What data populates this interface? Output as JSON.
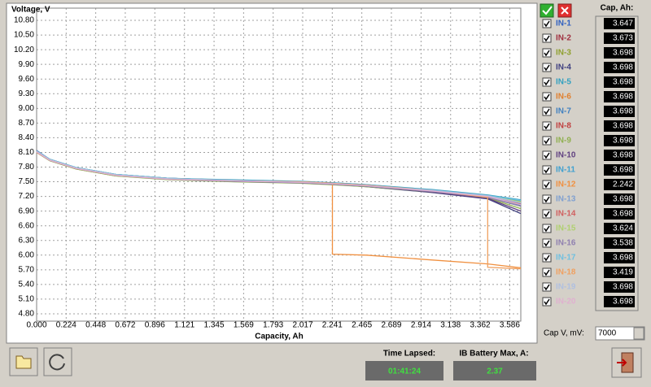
{
  "chart_data": {
    "type": "line",
    "ylabel": "Voltage, V",
    "xlabel": "Capacity, Ah",
    "ylim": [
      4.65,
      11.05
    ],
    "xlim": [
      0,
      3.67
    ],
    "grid": true,
    "yticks": [
      {
        "value": 4.8,
        "label": "4.80"
      },
      {
        "value": 5.1,
        "label": "5.10"
      },
      {
        "value": 5.4,
        "label": "5.40"
      },
      {
        "value": 5.7,
        "label": "5.70"
      },
      {
        "value": 6.0,
        "label": "6.00"
      },
      {
        "value": 6.3,
        "label": "6.30"
      },
      {
        "value": 6.6,
        "label": "6.60"
      },
      {
        "value": 6.9,
        "label": "6.90"
      },
      {
        "value": 7.2,
        "label": "7.20"
      },
      {
        "value": 7.5,
        "label": "7.50"
      },
      {
        "value": 7.8,
        "label": "7.80"
      },
      {
        "value": 8.1,
        "label": "8.10"
      },
      {
        "value": 8.4,
        "label": "8.40"
      },
      {
        "value": 8.7,
        "label": "8.70"
      },
      {
        "value": 9.0,
        "label": "9.00"
      },
      {
        "value": 9.3,
        "label": "9.30"
      },
      {
        "value": 9.6,
        "label": "9.60"
      },
      {
        "value": 9.9,
        "label": "9.90"
      },
      {
        "value": 10.2,
        "label": "10.20"
      },
      {
        "value": 10.5,
        "label": "10.50"
      },
      {
        "value": 10.8,
        "label": "10.80"
      }
    ],
    "xticks": [
      {
        "value": 0,
        "label": "0.000"
      },
      0.224,
      0.448,
      0.672,
      0.896,
      1.121,
      1.345,
      1.569,
      1.793,
      2.017,
      2.241,
      2.465,
      2.689,
      2.914,
      3.138,
      3.362,
      3.586
    ],
    "x": [
      0,
      0.1,
      0.3,
      0.6,
      1.0,
      1.5,
      2.0,
      2.242,
      2.242,
      2.5,
      3.0,
      3.419,
      3.419,
      3.67
    ],
    "series": [
      {
        "name": "IN-1",
        "color": "#3060c0",
        "values": [
          8.14,
          7.96,
          7.79,
          7.65,
          7.57,
          7.53,
          7.5,
          7.47,
          7.47,
          7.43,
          7.33,
          7.22,
          7.22,
          7.12
        ]
      },
      {
        "name": "IN-2",
        "color": "#a03040",
        "values": [
          8.12,
          7.95,
          7.78,
          7.64,
          7.56,
          7.52,
          7.49,
          7.46,
          7.46,
          7.42,
          7.31,
          7.2,
          7.2,
          7.05
        ]
      },
      {
        "name": "IN-3",
        "color": "#90a030",
        "values": [
          8.1,
          7.93,
          7.76,
          7.62,
          7.55,
          7.51,
          7.48,
          7.45,
          7.45,
          7.41,
          7.3,
          7.18,
          7.18,
          7.0
        ]
      },
      {
        "name": "IN-4",
        "color": "#404080",
        "values": [
          8.11,
          7.94,
          7.77,
          7.63,
          7.55,
          7.51,
          7.48,
          7.45,
          7.45,
          7.4,
          7.28,
          7.15,
          7.15,
          6.85
        ]
      },
      {
        "name": "IN-5",
        "color": "#30a0c0",
        "values": [
          8.13,
          7.96,
          7.79,
          7.65,
          7.57,
          7.54,
          7.51,
          7.48,
          7.48,
          7.44,
          7.34,
          7.23,
          7.23,
          7.13
        ]
      },
      {
        "name": "IN-6",
        "color": "#e08030",
        "values": [
          8.12,
          7.95,
          7.78,
          7.64,
          7.56,
          7.52,
          7.5,
          7.47,
          7.47,
          7.43,
          7.32,
          7.21,
          7.21,
          7.08
        ]
      },
      {
        "name": "IN-7",
        "color": "#4080c0",
        "values": [
          8.11,
          7.94,
          7.77,
          7.63,
          7.56,
          7.52,
          7.49,
          7.46,
          7.46,
          7.42,
          7.31,
          7.19,
          7.19,
          7.02
        ]
      },
      {
        "name": "IN-8",
        "color": "#c04040",
        "values": [
          8.13,
          7.95,
          7.78,
          7.64,
          7.57,
          7.53,
          7.5,
          7.47,
          7.47,
          7.43,
          7.33,
          7.22,
          7.22,
          7.1
        ]
      },
      {
        "name": "IN-9",
        "color": "#90b050",
        "values": [
          8.1,
          7.93,
          7.76,
          7.62,
          7.54,
          7.5,
          7.47,
          7.44,
          7.44,
          7.4,
          7.29,
          7.17,
          7.17,
          6.95
        ]
      },
      {
        "name": "IN-10",
        "color": "#604080",
        "values": [
          8.12,
          7.94,
          7.77,
          7.63,
          7.55,
          7.51,
          7.48,
          7.45,
          7.45,
          7.41,
          7.29,
          7.16,
          7.16,
          6.9
        ]
      },
      {
        "name": "IN-11",
        "color": "#40a0d0",
        "values": [
          8.13,
          7.96,
          7.79,
          7.65,
          7.57,
          7.53,
          7.5,
          7.48,
          7.48,
          7.44,
          7.33,
          7.22,
          7.22,
          7.11
        ]
      },
      {
        "name": "IN-12",
        "color": "#f09040",
        "values": [
          8.1,
          7.94,
          7.77,
          7.63,
          7.55,
          7.52,
          7.5,
          7.47,
          6.02,
          6.0,
          5.9,
          5.82,
          5.82,
          5.74
        ]
      },
      {
        "name": "IN-13",
        "color": "#80a0d0",
        "values": [
          8.12,
          7.95,
          7.78,
          7.64,
          7.56,
          7.52,
          7.49,
          7.46,
          7.46,
          7.42,
          7.32,
          7.2,
          7.2,
          7.06
        ]
      },
      {
        "name": "IN-14",
        "color": "#d06060",
        "values": [
          8.11,
          7.94,
          7.77,
          7.63,
          7.56,
          7.52,
          7.49,
          7.46,
          7.46,
          7.42,
          7.31,
          7.2,
          7.2,
          7.04
        ]
      },
      {
        "name": "IN-15",
        "color": "#b0d070",
        "values": [
          8.12,
          7.95,
          7.78,
          7.64,
          7.56,
          7.52,
          7.49,
          7.46,
          7.46,
          7.42,
          7.32,
          7.21,
          7.21,
          7.09
        ]
      },
      {
        "name": "IN-16",
        "color": "#9080b0",
        "values": [
          8.11,
          7.94,
          7.77,
          7.63,
          7.55,
          7.51,
          7.48,
          7.45,
          7.45,
          7.41,
          7.3,
          7.18,
          7.18,
          7.0
        ]
      },
      {
        "name": "IN-17",
        "color": "#70c0e0",
        "values": [
          8.13,
          7.96,
          7.79,
          7.65,
          7.57,
          7.53,
          7.5,
          7.47,
          7.47,
          7.43,
          7.33,
          7.22,
          7.22,
          7.12
        ]
      },
      {
        "name": "IN-18",
        "color": "#f0a060",
        "values": [
          8.12,
          7.95,
          7.78,
          7.64,
          7.56,
          7.52,
          7.5,
          7.47,
          7.47,
          7.43,
          7.32,
          7.18,
          5.75,
          5.72
        ]
      },
      {
        "name": "IN-19",
        "color": "#b0c0e0",
        "values": [
          8.12,
          7.95,
          7.78,
          7.64,
          7.56,
          7.52,
          7.49,
          7.46,
          7.46,
          7.42,
          7.32,
          7.21,
          7.21,
          7.07
        ]
      },
      {
        "name": "IN-20",
        "color": "#e0b0d0",
        "values": [
          8.11,
          7.94,
          7.77,
          7.63,
          7.55,
          7.52,
          7.49,
          7.46,
          7.46,
          7.42,
          7.31,
          7.2,
          7.2,
          7.03
        ]
      }
    ]
  },
  "panel": {
    "title": "Cap, Ah:",
    "capacities": [
      3.647,
      3.673,
      3.698,
      3.698,
      3.698,
      3.698,
      3.698,
      3.698,
      3.698,
      3.698,
      3.698,
      2.242,
      3.698,
      3.698,
      3.624,
      3.538,
      3.698,
      3.419,
      3.698,
      3.698
    ],
    "cap_v_label": "Cap V, mV:",
    "cap_v": 7000
  },
  "status": {
    "time_label": "Time Lapsed:",
    "time": "01:41:24",
    "current_label": "IB Battery Max, A:",
    "current": 2.37
  }
}
